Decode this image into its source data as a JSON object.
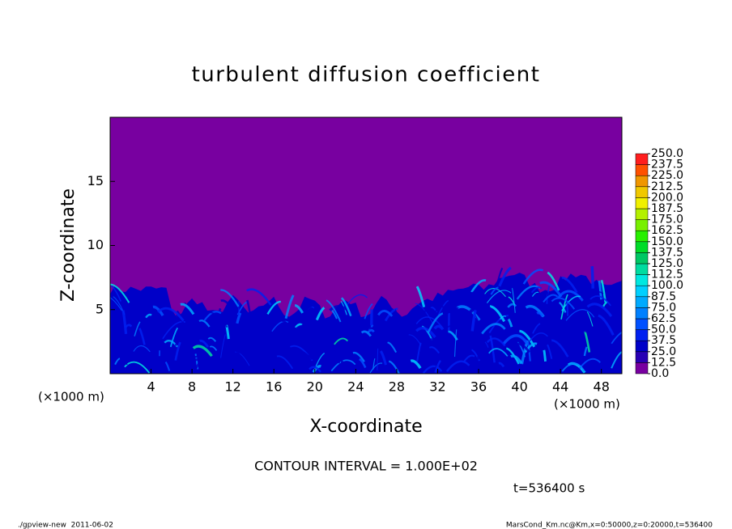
{
  "chart_data": {
    "type": "contour",
    "title": "turbulent diffusion coefficient",
    "x_label": "X-coordinate",
    "y_label": "Z-coordinate",
    "x_unit": "(×1000 m)",
    "y_unit": "(×1000 m)",
    "xlim": [
      0,
      50
    ],
    "ylim": [
      0,
      20
    ],
    "xticks": [
      4,
      8,
      12,
      16,
      20,
      24,
      28,
      32,
      36,
      40,
      44,
      48
    ],
    "yticks": [
      5,
      10,
      15
    ],
    "colorbar": {
      "levels": [
        {
          "value": 0,
          "label": "0.0"
        },
        12.5,
        {
          "value": 25,
          "label": "25.0"
        },
        37.5,
        {
          "value": 50,
          "label": "50.0"
        },
        62.5,
        {
          "value": 75,
          "label": "75.0"
        },
        87.5,
        {
          "value": 100,
          "label": "100.0"
        },
        112.5,
        {
          "value": 125,
          "label": "125.0"
        },
        137.5,
        {
          "value": 150,
          "label": "150.0"
        },
        162.5,
        {
          "value": 175,
          "label": "175.0"
        },
        187.5,
        {
          "value": 200,
          "label": "200.0"
        },
        212.5,
        {
          "value": 225,
          "label": "225.0"
        },
        237.5,
        {
          "value": 250,
          "label": "250.0"
        }
      ],
      "colors": [
        "#7800a0",
        "#2800b4",
        "#0000c8",
        "#0020f0",
        "#0050ff",
        "#0080ff",
        "#00aaff",
        "#00d0ff",
        "#00e8e0",
        "#00dca0",
        "#00c864",
        "#00dc28",
        "#28f000",
        "#78f000",
        "#b4f000",
        "#f0f000",
        "#f0c800",
        "#f09600",
        "#ff5000",
        "#ff1e1e"
      ]
    },
    "contour_interval": "CONTOUR INTERVAL = 1.000E+02",
    "time": "t=536400 s"
  },
  "footer": {
    "left": "./gpview-new  2011-06-02",
    "right": "MarsCond_Km.nc@Km,x=0:50000,z=0:20000,t=536400"
  }
}
